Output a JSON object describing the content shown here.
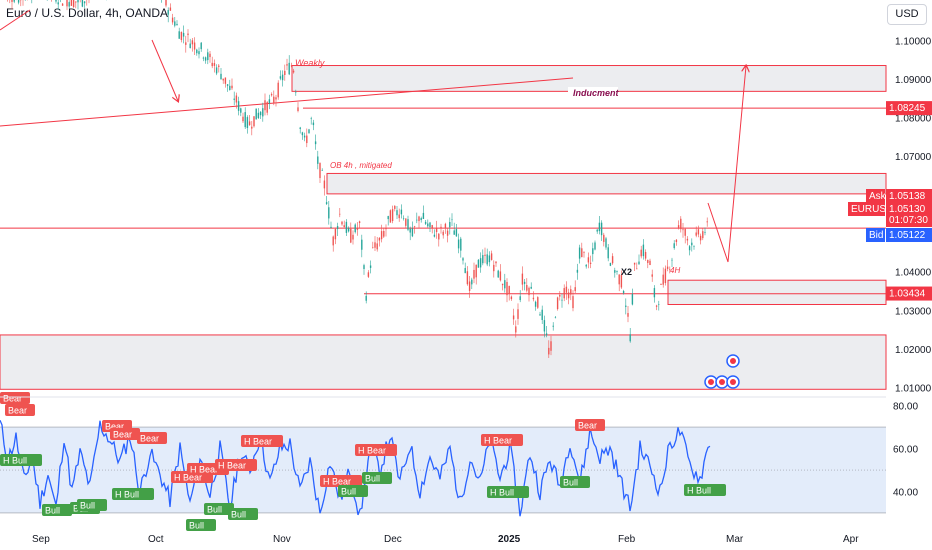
{
  "header": {
    "title": "Euro / U.S. Dollar, 4h, OANDA",
    "currency": "USD"
  },
  "colors": {
    "up": "#26a69a",
    "down": "#ef5350",
    "zone_border": "#f23645",
    "zone_fill": "#e7e8ec",
    "rsi": "#2962ff",
    "rsi_band": "#e3ecfa",
    "blue_tag": "#2962ff"
  },
  "price_axis": {
    "ticks": [
      "1.10000",
      "1.09000",
      "1.08000",
      "1.07000",
      "1.06000",
      "1.05000",
      "1.04000",
      "1.03000",
      "1.02000",
      "1.01000"
    ],
    "ymin": 1.0075,
    "ymax": 1.1105
  },
  "price_tags": {
    "inducement": "1.08245",
    "ask_label": "Ask",
    "ask": "1.05138",
    "symbol": "EURUSD",
    "last": "1.05130",
    "countdown": "01:07:30",
    "bid_label": "Bid",
    "bid": "1.05122",
    "zone4h": "1.03434"
  },
  "annotations": {
    "weekly": "Weakly",
    "inducement": "Inducment",
    "ob": "OB 4h , mitigated",
    "x2": "X2",
    "h4": "4H"
  },
  "rsi": {
    "ticks": [
      "80.00",
      "60.00",
      "40.00"
    ],
    "ymin": 23,
    "ymax": 84
  },
  "rsi_labels": [
    "Bear",
    "Bear",
    "Bear",
    "Bear",
    "Bear",
    "H Bear",
    "H Bear",
    "H Bear",
    "H Bear",
    "H Bear",
    "H Bear",
    "H Bear",
    "H Bear",
    "Bear",
    "H Bull",
    "Bull",
    "Bull",
    "Bull",
    "H Bull",
    "Bull",
    "Bull",
    "Bull",
    "Bull",
    "Bull",
    "H Bull",
    "Bull",
    "H Bull",
    "H Bull"
  ],
  "time_axis": [
    "Sep",
    "Oct",
    "Nov",
    "Dec",
    "2025",
    "Feb",
    "Mar",
    "Apr"
  ],
  "chart_data": {
    "type": "line",
    "title": "Euro / U.S. Dollar, 4h, OANDA",
    "price_path": [
      [
        0,
        1.113
      ],
      [
        20,
        1.111
      ],
      [
        40,
        1.114
      ],
      [
        60,
        1.111
      ],
      [
        80,
        1.11
      ],
      [
        100,
        1.114
      ],
      [
        130,
        1.115
      ],
      [
        160,
        1.113
      ],
      [
        180,
        1.102
      ],
      [
        200,
        1.098
      ],
      [
        220,
        1.092
      ],
      [
        235,
        1.085
      ],
      [
        248,
        1.078
      ],
      [
        262,
        1.082
      ],
      [
        275,
        1.085
      ],
      [
        285,
        1.092
      ],
      [
        293,
        1.094
      ],
      [
        300,
        1.079
      ],
      [
        305,
        1.073
      ],
      [
        312,
        1.08
      ],
      [
        318,
        1.068
      ],
      [
        325,
        1.062
      ],
      [
        333,
        1.048
      ],
      [
        340,
        1.055
      ],
      [
        350,
        1.049
      ],
      [
        360,
        1.052
      ],
      [
        366,
        1.034
      ],
      [
        372,
        1.045
      ],
      [
        382,
        1.049
      ],
      [
        392,
        1.055
      ],
      [
        402,
        1.056
      ],
      [
        412,
        1.049
      ],
      [
        420,
        1.055
      ],
      [
        430,
        1.051
      ],
      [
        440,
        1.05
      ],
      [
        452,
        1.052
      ],
      [
        462,
        1.046
      ],
      [
        470,
        1.035
      ],
      [
        478,
        1.042
      ],
      [
        490,
        1.044
      ],
      [
        500,
        1.039
      ],
      [
        510,
        1.034
      ],
      [
        516,
        1.025
      ],
      [
        522,
        1.038
      ],
      [
        532,
        1.035
      ],
      [
        542,
        1.029
      ],
      [
        550,
        1.018
      ],
      [
        556,
        1.031
      ],
      [
        566,
        1.036
      ],
      [
        574,
        1.032
      ],
      [
        580,
        1.046
      ],
      [
        590,
        1.041
      ],
      [
        600,
        1.053
      ],
      [
        608,
        1.045
      ],
      [
        616,
        1.04
      ],
      [
        624,
        1.036
      ],
      [
        630,
        1.023
      ],
      [
        634,
        1.04
      ],
      [
        642,
        1.046
      ],
      [
        650,
        1.042
      ],
      [
        656,
        1.031
      ],
      [
        664,
        1.038
      ],
      [
        672,
        1.044
      ],
      [
        680,
        1.053
      ],
      [
        690,
        1.047
      ],
      [
        698,
        1.049
      ],
      [
        706,
        1.051
      ],
      [
        710,
        1.0513
      ]
    ],
    "zones": [
      {
        "label": "Weakly",
        "from": 1.0935,
        "to": 1.0868
      },
      {
        "label": "OB 4h , mitigated",
        "from": 1.0655,
        "to": 1.0602
      },
      {
        "label": "4H",
        "from": 1.0378,
        "to": 1.0315
      },
      {
        "label": "",
        "from": 1.0236,
        "to": 1.0095
      }
    ],
    "levels": [
      {
        "label": "Inducment",
        "value": 1.08245
      },
      {
        "label": "",
        "value": 1.0513
      },
      {
        "label": "",
        "value": 1.0343
      }
    ],
    "rsi_path": [
      [
        0,
        72
      ],
      [
        8,
        55
      ],
      [
        16,
        65
      ],
      [
        24,
        45
      ],
      [
        32,
        56
      ],
      [
        40,
        35
      ],
      [
        48,
        48
      ],
      [
        56,
        32
      ],
      [
        64,
        66
      ],
      [
        72,
        40
      ],
      [
        80,
        58
      ],
      [
        90,
        42
      ],
      [
        100,
        71
      ],
      [
        110,
        64
      ],
      [
        120,
        54
      ],
      [
        130,
        66
      ],
      [
        140,
        40
      ],
      [
        150,
        58
      ],
      [
        160,
        48
      ],
      [
        170,
        36
      ],
      [
        180,
        60
      ],
      [
        190,
        34
      ],
      [
        200,
        56
      ],
      [
        210,
        38
      ],
      [
        220,
        60
      ],
      [
        230,
        32
      ],
      [
        240,
        58
      ],
      [
        250,
        50
      ],
      [
        260,
        66
      ],
      [
        270,
        44
      ],
      [
        280,
        60
      ],
      [
        290,
        62
      ],
      [
        300,
        40
      ],
      [
        310,
        54
      ],
      [
        320,
        30
      ],
      [
        330,
        54
      ],
      [
        340,
        36
      ],
      [
        350,
        50
      ],
      [
        360,
        28
      ],
      [
        370,
        60
      ],
      [
        380,
        50
      ],
      [
        390,
        66
      ],
      [
        400,
        44
      ],
      [
        410,
        62
      ],
      [
        420,
        40
      ],
      [
        430,
        56
      ],
      [
        440,
        46
      ],
      [
        450,
        60
      ],
      [
        460,
        34
      ],
      [
        470,
        56
      ],
      [
        480,
        44
      ],
      [
        490,
        64
      ],
      [
        500,
        46
      ],
      [
        510,
        60
      ],
      [
        520,
        30
      ],
      [
        530,
        58
      ],
      [
        540,
        40
      ],
      [
        550,
        55
      ],
      [
        560,
        42
      ],
      [
        570,
        64
      ],
      [
        580,
        44
      ],
      [
        590,
        68
      ],
      [
        600,
        56
      ],
      [
        610,
        60
      ],
      [
        620,
        46
      ],
      [
        630,
        32
      ],
      [
        640,
        60
      ],
      [
        650,
        52
      ],
      [
        660,
        40
      ],
      [
        670,
        62
      ],
      [
        680,
        68
      ],
      [
        690,
        52
      ],
      [
        700,
        46
      ],
      [
        710,
        64
      ]
    ],
    "rsi_band": [
      30,
      70
    ],
    "ylim": [
      1.0075,
      1.1105
    ]
  }
}
